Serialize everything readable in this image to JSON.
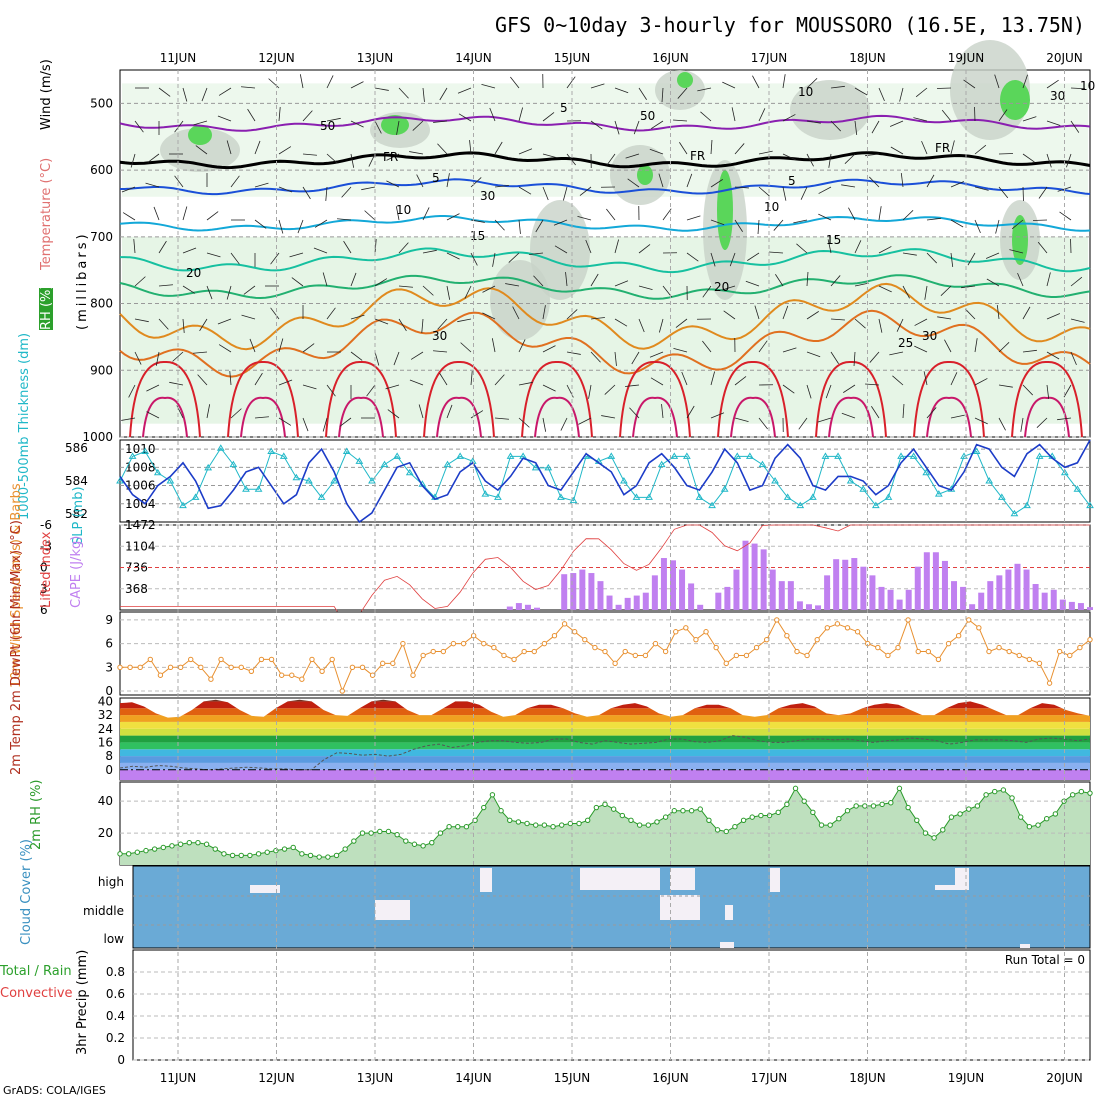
{
  "title": "GFS 0~10day 3-hourly for MOUSSORO (16.5E, 13.75N)",
  "footer": "GrADS: COLA/IGES",
  "colors": {
    "rh_green": "#5ad65a",
    "rh_light": "#e6f5e6",
    "rh_grey": "#c8d2c8",
    "temp_violet": "#8a1fb0",
    "temp_blue": "#1a4fd8",
    "temp_cyan": "#13a8d8",
    "temp_teal": "#16c0a0",
    "temp_green": "#22b070",
    "temp_orange": "#e08a1e",
    "temp_red": "#d8202a",
    "temp_magenta": "#c8186a",
    "thick_cyan": "#20b8c8",
    "slp_blue": "#1c3cc8",
    "cape_purple": "#c080f0",
    "li_red": "#e04040",
    "wind_orange": "#e89030",
    "rh2m_green": "#2a9a2a",
    "cloud_blue": "#6aaad6"
  },
  "chart_data": [
    {
      "type": "contour",
      "panel": "upper-air cross section",
      "ylabels": {
        "wind": "Wind (m/s)",
        "temp": "Temperature (°C)",
        "rh": "RH (%)",
        "pressure": "(millibars)"
      },
      "x_ticks": [
        "11JUN",
        "12JUN",
        "13JUN",
        "14JUN",
        "15JUN",
        "16JUN",
        "17JUN",
        "18JUN",
        "19JUN",
        "20JUN"
      ],
      "y_ticks": [
        500,
        600,
        700,
        800,
        900,
        1000
      ],
      "ylim": [
        1000,
        450
      ],
      "contour_labels": [
        "5",
        "FR",
        "5",
        "10",
        "15",
        "20",
        "30",
        "FR",
        "5",
        "10",
        "15",
        "20",
        "FR",
        "25",
        "30",
        "10",
        "30",
        "50",
        "30",
        "50",
        "10"
      ],
      "isotherms_mb": [
        {
          "label": "-5",
          "level": 530,
          "color": "temp_violet"
        },
        {
          "label": "FR",
          "level": 585,
          "color": "#000000"
        },
        {
          "label": "5",
          "level": 625,
          "color": "temp_blue"
        },
        {
          "label": "10",
          "level": 680,
          "color": "temp_cyan"
        },
        {
          "label": "15",
          "level": 735,
          "color": "temp_teal"
        },
        {
          "label": "20",
          "level": 775,
          "color": "temp_green"
        },
        {
          "label": "25",
          "level": 820,
          "color": "temp_orange"
        },
        {
          "label": "30",
          "level": 860,
          "color": "#e07020"
        }
      ]
    },
    {
      "type": "line",
      "panel": "thickness / slp",
      "ylabel_left": "1000-500mb Thickness (dm)",
      "ylabel_right": "SLP (mb)",
      "y_left_ticks": [
        582,
        584,
        586
      ],
      "y_right_ticks": [
        1004,
        1006,
        1008,
        1010
      ],
      "ylim_left": [
        581.5,
        586.5
      ],
      "ylim_right": [
        1002,
        1011
      ],
      "series": [
        {
          "name": "Thickness",
          "axis": "left",
          "color": "thick_cyan",
          "marker": "triangle",
          "values": [
            584.0,
            585.5,
            585.8,
            584.5,
            584.0,
            582.5,
            583.0,
            584.8,
            586.0,
            585.0,
            583.5,
            583.5,
            585.8,
            585.5,
            584.2,
            584.0,
            583.0,
            584.0,
            585.8,
            585.2,
            584.0,
            585.0,
            585.5,
            584.5,
            583.8,
            583.0,
            585.0,
            585.5,
            585.2,
            583.2,
            583.0,
            585.5,
            585.5,
            584.8,
            584.8,
            583.0,
            582.8,
            585.5,
            585.2,
            585.5,
            584.0,
            583.0,
            583.0,
            585.0,
            585.5,
            585.5,
            583.0,
            582.5,
            583.5,
            585.5,
            585.5,
            585.0,
            584.0,
            583.0,
            582.5,
            583.0,
            585.5,
            585.5,
            584.0,
            583.5,
            582.5,
            583.0,
            585.5,
            585.5,
            584.5,
            583.2,
            583.5,
            585.5,
            585.8,
            584.0,
            583.0,
            582.0,
            582.5,
            585.5,
            585.5,
            584.5,
            583.5,
            582.5
          ]
        },
        {
          "name": "SLP",
          "axis": "right",
          "color": "slp_blue",
          "values": [
            1007.0,
            1005.0,
            1004.0,
            1006.0,
            1007.0,
            1008.5,
            1006.5,
            1003.5,
            1003.8,
            1005.5,
            1007.5,
            1008.0,
            1006.0,
            1004.0,
            1005.0,
            1008.5,
            1010.0,
            1007.5,
            1004.0,
            1002.0,
            1003.0,
            1005.5,
            1008.0,
            1008.5,
            1006.0,
            1004.5,
            1005.0,
            1007.5,
            1008.5,
            1006.5,
            1005.5,
            1007.0,
            1009.0,
            1008.5,
            1006.0,
            1005.5,
            1007.5,
            1009.5,
            1008.5,
            1007.5,
            1005.0,
            1006.0,
            1008.5,
            1009.5,
            1008.0,
            1006.0,
            1005.5,
            1007.5,
            1010.0,
            1008.5,
            1005.5,
            1006.0,
            1009.0,
            1010.5,
            1009.0,
            1006.0,
            1005.5,
            1007.0,
            1007.0,
            1006.5,
            1005.0,
            1006.0,
            1008.5,
            1010.0,
            1008.0,
            1006.0,
            1005.5,
            1007.5,
            1010.5,
            1010.0,
            1008.0,
            1007.0,
            1009.5,
            1010.5,
            1009.0,
            1008.0,
            1008.5,
            1011.0
          ]
        }
      ]
    },
    {
      "type": "bar",
      "panel": "CAPE / lifted index",
      "ylabel_left": "Lifted Index",
      "ylabel_right": "CAPE (J/kg)",
      "y_left_ticks": [
        -6,
        -3,
        0,
        3,
        6
      ],
      "y_right_ticks": [
        368,
        736,
        1104,
        1472
      ],
      "ylim_right": [
        0,
        1472
      ],
      "ylim_left": [
        6,
        -6
      ],
      "cape": [
        0,
        0,
        0,
        0,
        0,
        0,
        0,
        0,
        0,
        0,
        0,
        0,
        0,
        0,
        0,
        0,
        0,
        0,
        0,
        0,
        0,
        0,
        0,
        0,
        0,
        0,
        0,
        0,
        0,
        0,
        0,
        0,
        0,
        0,
        0,
        0,
        0,
        0,
        0,
        0,
        0,
        0,
        0,
        60,
        120,
        90,
        40,
        0,
        0,
        620,
        640,
        700,
        640,
        500,
        250,
        90,
        210,
        250,
        300,
        600,
        900,
        860,
        700,
        460,
        90,
        0,
        300,
        400,
        700,
        1200,
        1150,
        1050,
        700,
        500,
        500,
        150,
        100,
        80,
        600,
        880,
        870,
        900,
        750,
        600,
        400,
        350,
        180,
        350,
        750,
        1000,
        1000,
        850,
        500,
        400,
        100,
        300,
        500,
        600,
        700,
        800,
        700,
        450,
        300,
        350,
        180,
        140,
        120,
        50
      ]
    },
    {
      "type": "line",
      "panel": "10m wind",
      "ylabel": "10m Wind Speed (m/s) & Barbs",
      "y_ticks": [
        0,
        3,
        6,
        9
      ],
      "ylim": [
        -0.5,
        10
      ],
      "series": [
        {
          "name": "Speed",
          "color": "wind_orange",
          "values": [
            3.0,
            3.0,
            3.0,
            4.0,
            2.0,
            3.0,
            3.0,
            4.0,
            3.0,
            1.5,
            4.0,
            3.0,
            3.0,
            2.5,
            4.0,
            4.0,
            2.0,
            2.0,
            1.5,
            4.0,
            2.5,
            4.0,
            0.0,
            3.0,
            3.0,
            2.0,
            3.5,
            3.5,
            6.0,
            2.0,
            4.5,
            5.0,
            5.0,
            6.0,
            6.0,
            7.0,
            6.0,
            5.5,
            4.5,
            4.0,
            5.0,
            5.0,
            6.0,
            7.0,
            8.5,
            7.5,
            6.5,
            5.5,
            5.0,
            3.5,
            5.0,
            4.5,
            4.5,
            6.0,
            5.0,
            7.5,
            8.0,
            6.5,
            7.5,
            5.5,
            3.5,
            4.5,
            4.5,
            5.5,
            6.5,
            9.0,
            7.0,
            5.0,
            4.5,
            6.5,
            8.0,
            8.5,
            8.0,
            7.5,
            6.0,
            5.5,
            4.5,
            5.5,
            9.0,
            5.0,
            5.0,
            4.0,
            6.0,
            7.0,
            9.0,
            8.0,
            5.0,
            5.5,
            5.0,
            4.5,
            4.0,
            3.5,
            1.0,
            5.0,
            4.5,
            5.5,
            6.5
          ]
        }
      ]
    },
    {
      "type": "area",
      "panel": "2m temperature",
      "ylabel": "2m Temp 2m DewPt (6hr Min/Max) (°C)",
      "y_ticks": [
        0,
        8,
        16,
        24,
        32,
        40
      ],
      "ylim": [
        -6,
        42
      ],
      "series": [
        {
          "name": "Temp",
          "values": [
            39.0,
            39.5,
            37.0,
            33.0,
            30.5,
            31.0,
            35.0,
            40.0,
            41.0,
            39.5,
            35.0,
            31.5,
            31.0,
            36.0,
            40.0,
            41.0,
            40.0,
            35.0,
            32.0,
            31.5,
            36.0,
            40.0,
            41.0,
            40.0,
            35.0,
            32.0,
            32.0,
            36.0,
            40.0,
            40.0,
            38.0,
            34.0,
            31.0,
            32.0,
            36.0,
            38.0,
            38.0,
            36.0,
            33.0,
            31.0,
            32.0,
            36.0,
            38.0,
            39.0,
            37.0,
            33.0,
            31.0,
            32.0,
            36.0,
            38.0,
            38.0,
            36.0,
            32.0,
            31.0,
            32.0,
            36.0,
            38.0,
            39.0,
            37.0,
            33.0,
            32.0,
            33.0,
            36.0,
            38.0,
            39.0,
            38.0,
            35.0,
            32.0,
            32.0,
            36.0,
            39.0,
            40.0,
            38.0,
            35.0,
            32.0,
            32.0,
            36.0,
            39.0,
            38.0,
            35.0,
            33.0,
            31.5
          ]
        },
        {
          "name": "DewPt",
          "values": [
            1.0,
            2.0,
            1.5,
            2.5,
            2.0,
            1.0,
            0.5,
            0.0,
            0.5,
            1.0,
            1.5,
            1.0,
            0.5,
            0.5,
            0.0,
            0.0,
            6.0,
            10.0,
            9.5,
            8.5,
            9.0,
            8.0,
            9.0,
            12.0,
            14.0,
            15.0,
            13.0,
            14.0,
            16.0,
            17.0,
            17.0,
            16.0,
            15.5,
            16.0,
            18.0,
            18.0,
            16.0,
            15.0,
            17.0,
            16.0,
            15.0,
            15.5,
            16.0,
            18.0,
            18.0,
            16.5,
            16.0,
            17.0,
            20.0,
            19.0,
            17.0,
            16.0,
            16.0,
            17.0,
            18.0,
            18.0,
            17.5,
            18.0,
            17.0,
            16.0,
            17.0,
            17.5,
            18.5,
            18.0,
            17.0,
            15.0,
            16.0,
            17.5,
            17.5,
            17.5,
            17.0,
            16.0,
            18.0,
            18.5,
            18.0,
            17.0,
            18.0
          ]
        }
      ]
    },
    {
      "type": "area",
      "panel": "2m RH",
      "ylabel": "2m RH (%)",
      "y_ticks": [
        20,
        40
      ],
      "ylim": [
        0,
        52
      ],
      "values": [
        7,
        7,
        8,
        9,
        10,
        11,
        12,
        13,
        14,
        14,
        13,
        10,
        7,
        6,
        6,
        6,
        7,
        8,
        9,
        10,
        11,
        7,
        6,
        5,
        5,
        6,
        10,
        15,
        20,
        20,
        21,
        21,
        19,
        15,
        13,
        12,
        14,
        20,
        24,
        24,
        24,
        28,
        36,
        44,
        34,
        28,
        27,
        26,
        25,
        25,
        24,
        25,
        26,
        26,
        28,
        36,
        38,
        35,
        31,
        28,
        25,
        25,
        27,
        30,
        34,
        34,
        34,
        35,
        28,
        22,
        21,
        24,
        28,
        30,
        31,
        31,
        33,
        38,
        48,
        40,
        33,
        25,
        25,
        29,
        34,
        37,
        37,
        37,
        38,
        39,
        48,
        36,
        28,
        20,
        17,
        22,
        30,
        32,
        35,
        37,
        44,
        46,
        47,
        42,
        30,
        24,
        25,
        29,
        32,
        40,
        44,
        46,
        45
      ]
    },
    {
      "type": "heatmap",
      "panel": "cloud cover",
      "ylabel": "Cloud Cover (%)",
      "levels": [
        "high",
        "middle",
        "low"
      ],
      "note": "blue = clear; white bars = cloud fraction"
    },
    {
      "type": "bar",
      "panel": "3hr precip",
      "ylabel_left": "Total / Rain",
      "ylabel_left2": "Convective",
      "ylabel": "3hr Precip (mm)",
      "y_ticks": [
        "0",
        "0.2",
        "0.4",
        "0.6",
        "0.8"
      ],
      "ylim": [
        0,
        1
      ],
      "annotation": "Run Total = 0",
      "values": []
    }
  ]
}
